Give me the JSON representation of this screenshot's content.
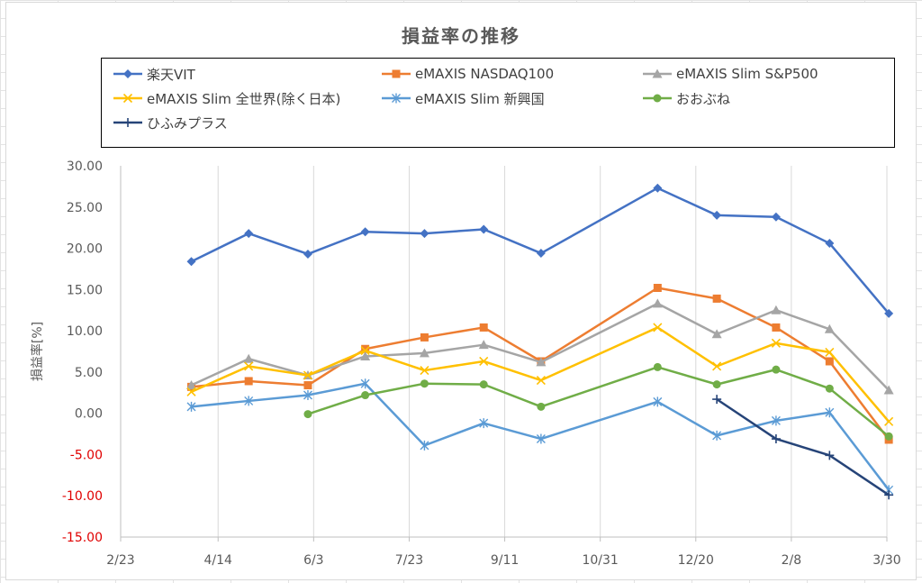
{
  "chart_data": {
    "type": "line",
    "title": "損益率の推移",
    "xlabel": "",
    "ylabel": "損益率[%]",
    "x_ticks": [
      "2/23",
      "4/14",
      "6/3",
      "7/23",
      "9/11",
      "10/31",
      "12/20",
      "2/8",
      "3/30"
    ],
    "x_dates": [
      "2020-02-23",
      "2020-04-14",
      "2020-06-03",
      "2020-07-23",
      "2020-09-11",
      "2020-10-31",
      "2020-12-20",
      "2021-02-08",
      "2021-03-30"
    ],
    "y_ticks": [
      "30.00",
      "25.00",
      "20.00",
      "15.00",
      "10.00",
      "5.00",
      "0.00",
      "-5.00",
      "-10.00",
      "-15.00"
    ],
    "ylim": [
      -15,
      30
    ],
    "legend_position": "top",
    "grid": "vertical",
    "x": [
      "2020-03-31",
      "2020-04-30",
      "2020-05-31",
      "2020-06-30",
      "2020-07-31",
      "2020-08-31",
      "2020-09-30",
      "2020-10-31",
      "2020-11-30",
      "2020-12-31",
      "2021-01-31",
      "2021-02-28",
      "2021-03-31"
    ],
    "series": [
      {
        "name": "楽天VIT",
        "color": "#4472C4",
        "marker": "diamond",
        "values": [
          18.4,
          21.8,
          19.3,
          22.0,
          21.8,
          22.3,
          19.4,
          null,
          27.3,
          24.0,
          23.8,
          20.6,
          12.1
        ]
      },
      {
        "name": "eMAXIS NASDAQ100",
        "color": "#ED7D31",
        "marker": "square",
        "values": [
          3.2,
          3.9,
          3.4,
          7.8,
          9.2,
          10.4,
          6.3,
          null,
          15.2,
          13.9,
          10.4,
          6.3,
          -3.2
        ]
      },
      {
        "name": "eMAXIS Slim S&P500",
        "color": "#A5A5A5",
        "marker": "triangle",
        "values": [
          3.4,
          6.6,
          4.6,
          6.9,
          7.3,
          8.3,
          6.2,
          null,
          13.3,
          9.6,
          12.5,
          10.2,
          2.8
        ]
      },
      {
        "name": "eMAXIS Slim 全世界(除く日本)",
        "color": "#FFC000",
        "marker": "x",
        "values": [
          2.6,
          5.7,
          4.6,
          7.6,
          5.2,
          6.3,
          4.0,
          null,
          10.4,
          5.7,
          8.5,
          7.4,
          -1.0
        ]
      },
      {
        "name": "eMAXIS Slim 新興国",
        "color": "#5B9BD5",
        "marker": "star",
        "values": [
          0.8,
          1.5,
          2.2,
          3.6,
          -3.9,
          -1.2,
          -3.1,
          null,
          1.4,
          -2.7,
          -0.9,
          0.1,
          -9.3
        ]
      },
      {
        "name": "おおぶね",
        "color": "#70AD47",
        "marker": "circle",
        "values": [
          null,
          null,
          -0.1,
          2.2,
          3.6,
          3.5,
          0.8,
          null,
          5.6,
          3.5,
          5.3,
          3.0,
          -2.8
        ]
      },
      {
        "name": "ひふみプラス",
        "color": "#264478",
        "marker": "plus",
        "values": [
          null,
          null,
          null,
          null,
          null,
          null,
          null,
          null,
          null,
          1.7,
          -3.1,
          -5.1,
          -9.9
        ]
      }
    ]
  }
}
